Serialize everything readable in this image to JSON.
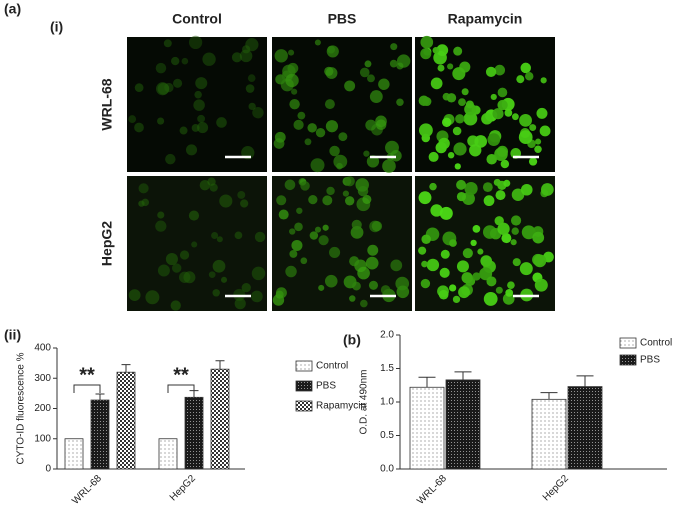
{
  "panel_labels": [
    "(a)",
    "(i)",
    "(ii)",
    "(b)"
  ],
  "images": {
    "columns": [
      "Control",
      "PBS",
      "Rapamycin"
    ],
    "rows": [
      "WRL-68",
      "HepG2"
    ]
  },
  "chart_data": [
    {
      "type": "bar",
      "ylabel": "CYTO-ID fluorescence %",
      "categories": [
        "WRL-68",
        "HepG2"
      ],
      "series": [
        {
          "name": "Control",
          "color": "#ffffff",
          "pattern": "dots",
          "values": [
            100,
            100
          ]
        },
        {
          "name": "PBS",
          "color": "#1a1a1a",
          "pattern": "dense",
          "values": [
            228,
            237
          ],
          "errors": [
            20,
            22
          ]
        },
        {
          "name": "Rapamycin",
          "color": "#ffffff",
          "pattern": "checker",
          "values": [
            320,
            330
          ],
          "errors": [
            25,
            28
          ]
        }
      ],
      "annotations": [
        "**",
        "**"
      ],
      "ylim": [
        0,
        400
      ],
      "yticks": [
        0,
        100,
        200,
        300,
        400
      ]
    },
    {
      "type": "bar",
      "ylabel": "O.D. at 490nm",
      "categories": [
        "WRL-68",
        "HepG2"
      ],
      "series": [
        {
          "name": "Control",
          "color": "#ffffff",
          "pattern": "dots",
          "values": [
            1.22,
            1.04
          ],
          "errors": [
            0.15,
            0.1
          ]
        },
        {
          "name": "PBS",
          "color": "#1a1a1a",
          "pattern": "dense",
          "values": [
            1.33,
            1.23
          ],
          "errors": [
            0.12,
            0.16
          ]
        }
      ],
      "ylim": [
        0,
        2.0
      ],
      "yticks": [
        {
          "value": 0,
          "label": "0.0"
        },
        {
          "value": 0.5,
          "label": "0.5"
        },
        {
          "value": 1.0,
          "label": "1.0"
        },
        {
          "value": 1.5,
          "label": "1.5"
        },
        {
          "value": 2.0,
          "label": "2.0"
        }
      ]
    }
  ]
}
